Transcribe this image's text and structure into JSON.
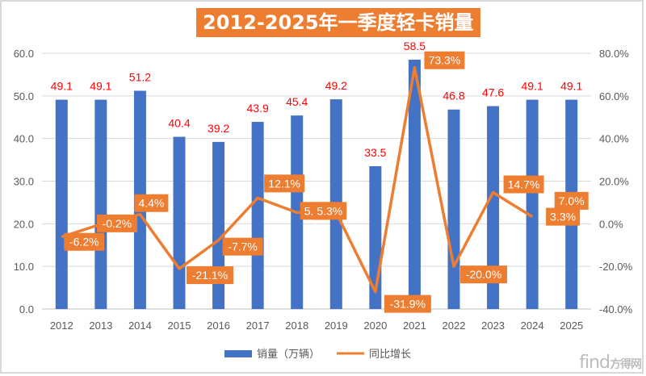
{
  "title": "2012-2025年一季度轻卡销量",
  "watermark": {
    "brand": "find",
    "suffix": "方得网"
  },
  "colors": {
    "bar": "#4472C4",
    "line": "#ED7D31",
    "bar_label": "#FF0000",
    "grid": "#D9D9D9"
  },
  "chart_data": {
    "type": "bar",
    "title": "2012-2025年一季度轻卡销量",
    "categories": [
      "2012",
      "2013",
      "2014",
      "2015",
      "2016",
      "2017",
      "2018",
      "2019",
      "2020",
      "2021",
      "2022",
      "2023",
      "2024",
      "2025"
    ],
    "series": [
      {
        "name": "销量（万辆）",
        "type": "bar",
        "axis": "left",
        "values": [
          49.1,
          49.1,
          51.2,
          40.4,
          39.2,
          43.9,
          45.4,
          49.2,
          33.5,
          58.5,
          46.8,
          47.6,
          49.1,
          49.1
        ],
        "labels": [
          "49.1",
          "49.1",
          "51.2",
          "40.4",
          "39.2",
          "43.9",
          "45.4",
          "49.2",
          "33.5",
          "58.5",
          "46.8",
          "47.6",
          "49.1",
          "49.1"
        ]
      },
      {
        "name": "同比增长",
        "type": "line",
        "axis": "right",
        "values": [
          -6.2,
          -0.2,
          4.4,
          -21.1,
          -7.7,
          12.1,
          5.3,
          5.3,
          -31.9,
          73.3,
          -20.0,
          14.7,
          3.3,
          7.0
        ],
        "labels": [
          "-6.2%",
          "-0.2%",
          "4.4%",
          "-21.1%",
          "-7.7%",
          "12.1%",
          "5.3%",
          "5.3%",
          "-31.9%",
          "73.3%",
          "-20.0%",
          "14.7%",
          "3.3%",
          "7.0%"
        ]
      }
    ],
    "y_left": {
      "ylim": [
        0,
        60
      ],
      "ticks": [
        "0.0",
        "10.0",
        "20.0",
        "30.0",
        "40.0",
        "50.0",
        "60.0"
      ]
    },
    "y_right": {
      "ylim": [
        -40,
        80
      ],
      "ticks": [
        "-40.0%",
        "-20.0%",
        "0.0%",
        "20.0%",
        "40.0%",
        "60.0%",
        "80.0%"
      ]
    },
    "grid": true,
    "legend_position": "bottom",
    "legend": [
      "销量（万辆）",
      "同比增长"
    ]
  }
}
